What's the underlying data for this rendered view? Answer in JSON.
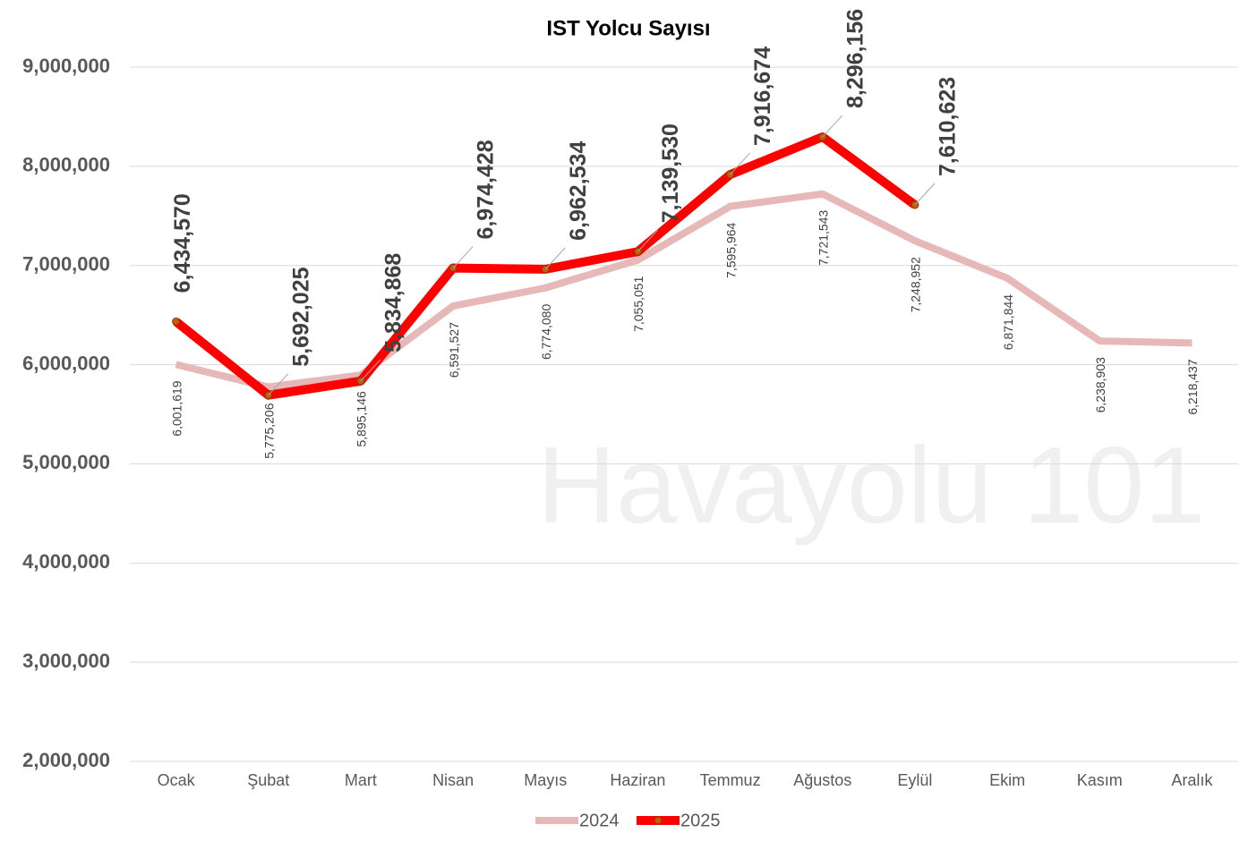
{
  "chart_data": {
    "type": "line",
    "title": "IST Yolcu Sayısı",
    "watermark": "Havayolu 101",
    "categories": [
      "Ocak",
      "Şubat",
      "Mart",
      "Nisan",
      "Mayıs",
      "Haziran",
      "Temmuz",
      "Ağustos",
      "Eylül",
      "Ekim",
      "Kasım",
      "Aralık"
    ],
    "series": [
      {
        "name": "2024",
        "color": "#e6b8b7",
        "values": [
          6001619,
          5775206,
          5895146,
          6591527,
          6774080,
          7055051,
          7595964,
          7721543,
          7248952,
          6871844,
          6238903,
          6218437
        ],
        "value_labels": [
          "6,001,619",
          "5,775,206",
          "5,895,146",
          "6,591,527",
          "6,774,080",
          "7,055,051",
          "7,595,964",
          "7,721,543",
          "7,248,952",
          "6,871,844",
          "6,238,903",
          "6,218,437"
        ]
      },
      {
        "name": "2025",
        "color": "#ff0000",
        "values": [
          6434570,
          5692025,
          5834868,
          6974428,
          6962534,
          7139530,
          7916674,
          8296156,
          7610623,
          null,
          null,
          null
        ],
        "value_labels": [
          "6,434,570",
          "5,692,025",
          "5,834,868",
          "6,974,428",
          "6,962,534",
          "7,139,530",
          "7,916,674",
          "8,296,156",
          "7,610,623",
          null,
          null,
          null
        ]
      }
    ],
    "ylim": [
      2000000,
      9000000
    ],
    "yticks": [
      {
        "value": 2000000,
        "label": "2,000,000"
      },
      {
        "value": 3000000,
        "label": "3,000,000"
      },
      {
        "value": 4000000,
        "label": "4,000,000"
      },
      {
        "value": 5000000,
        "label": "5,000,000"
      },
      {
        "value": 6000000,
        "label": "6,000,000"
      },
      {
        "value": 7000000,
        "label": "7,000,000"
      },
      {
        "value": 8000000,
        "label": "8,000,000"
      },
      {
        "value": 9000000,
        "label": "9,000,000"
      }
    ],
    "grid": true,
    "legend": "bottom"
  }
}
